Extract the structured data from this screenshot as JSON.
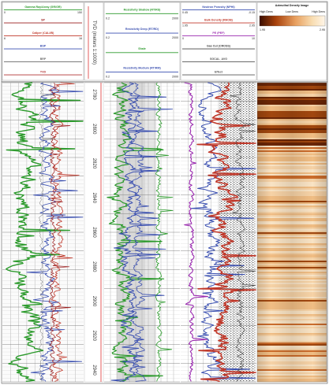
{
  "tracks": {
    "t1": {
      "curves": [
        {
          "name": "Gamma Ray/Array (GR/GR)",
          "color": "#2c9a2c",
          "min": "0",
          "max": "150"
        },
        {
          "name": "SP",
          "color": "#9a1c1c",
          "min": "",
          "max": ""
        },
        {
          "name": "Caliper (CALI/B)",
          "color": "#c0392b",
          "min": "6",
          "max": "16"
        },
        {
          "name": "BSP",
          "color": "#3a4fb0",
          "min": "",
          "max": ""
        },
        {
          "name": "BRP",
          "color": "#6a6a6a",
          "min": "",
          "max": ""
        },
        {
          "name": "TVD",
          "color": "#b03030",
          "min": "",
          "max": ""
        }
      ]
    },
    "depth": {
      "title": "TVD (meters 1:1000)",
      "marks": [
        "2780",
        "2800",
        "2820",
        "2840",
        "2860",
        "2880",
        "2900",
        "2920",
        "2940"
      ]
    },
    "t2": {
      "curves": [
        {
          "name": "Resistivity Shallow (RT/RS)",
          "color": "#2c9a2c",
          "min": "0.2",
          "max": "2000"
        },
        {
          "name": "Resistivity Deep (RT/RD)",
          "color": "#3a4fb0",
          "min": "0.2",
          "max": "2000"
        },
        {
          "name": "Shale",
          "color": "#2c9a2c",
          "min": "",
          "max": ""
        },
        {
          "name": "Resistivity Medium (RT/RM)",
          "color": "#3a4fb0",
          "min": "0.2",
          "max": "2000"
        }
      ]
    },
    "t3": {
      "curves": [
        {
          "name": "Neutron Porosity (NPHI)",
          "color": "#3a4fb0",
          "min": "0.45",
          "max": "-0.15"
        },
        {
          "name": "Bulk Density (RHOB)",
          "color": "#c0392b",
          "min": "1.95",
          "max": "2.95"
        },
        {
          "name": "PE (PEF)",
          "color": "#9b2cb0",
          "min": "0",
          "max": "10"
        },
        {
          "name": "Gas Cut (CROSS)",
          "color": "#444444",
          "min": "",
          "max": ""
        },
        {
          "name": "SGCAL_AVG",
          "color": "#555555",
          "min": "",
          "max": ""
        },
        {
          "name": "Effect",
          "color": "#555555",
          "min": "",
          "max": ""
        }
      ]
    },
    "t4": {
      "title": "Azimuthal Density Image",
      "scale_labels": [
        "High Dens",
        "Low Dens",
        "High Dens"
      ],
      "scale_min": "1.95",
      "scale_max": "2.95"
    }
  }
}
